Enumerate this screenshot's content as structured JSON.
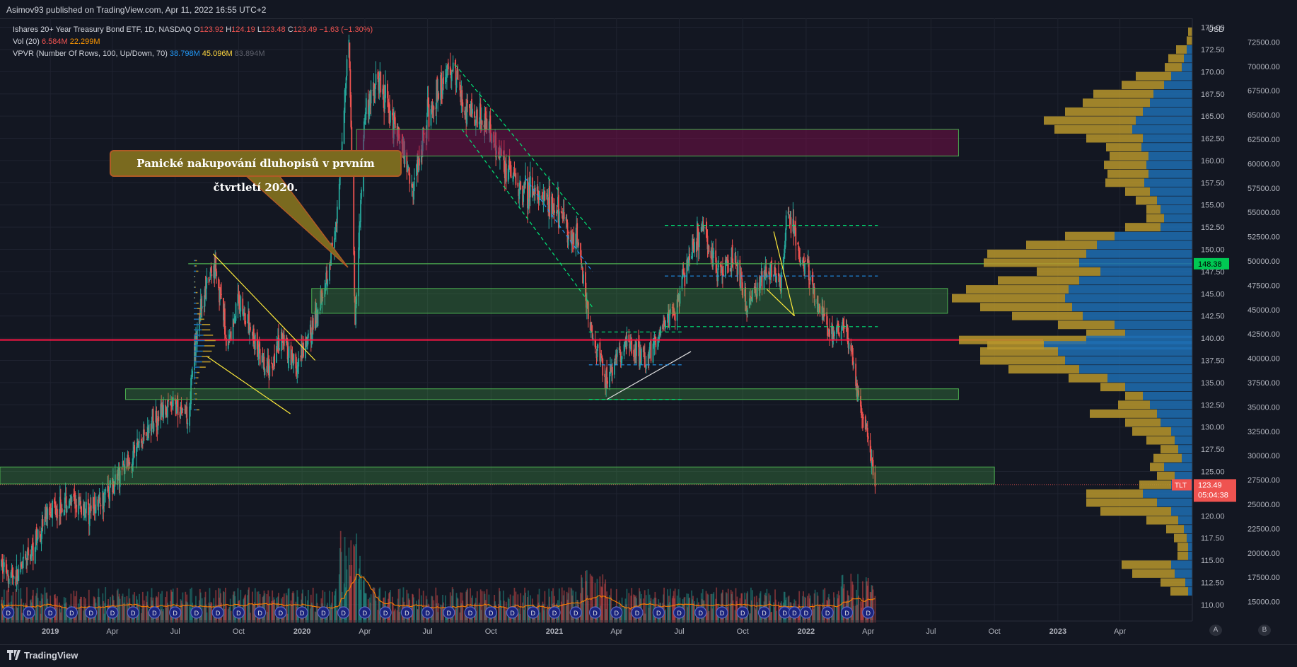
{
  "publisher": "Asimov93 published on TradingView.com, Apr 11, 2022 16:55 UTC+2",
  "legend": {
    "title": "Ishares 20+ Year Treasury Bond ETF, 1D, NASDAQ",
    "o_label": "O",
    "o": "123.92",
    "h_label": "H",
    "h": "124.19",
    "l_label": "L",
    "l": "123.48",
    "c_label": "C",
    "c": "123.49",
    "change": "−1.63 (−1.30%)",
    "vol_label": "Vol (20)",
    "vol1": "6.584M",
    "vol2": "22.299M",
    "vpvr_label": "VPVR (Number Of Rows, 100, Up/Down, 70)",
    "vpvr1": "38.798M",
    "vpvr2": "45.096M",
    "vpvr3": "83.894M"
  },
  "annotation": "Panické nakupování dluhopisů v prvním čtvrtletí 2020.",
  "colors": {
    "bg": "#131722",
    "up": "#26a69a",
    "down": "#ef5350",
    "zone_green": "#4caf50",
    "zone_red": "#880e4f",
    "vp_up": "#1e6fb3",
    "vp_down": "#b8962b",
    "vol_ma": "#f57c00",
    "red_line": "#ff1744"
  },
  "chart_data": {
    "type": "candlestick",
    "title": "Ishares 20+ Year Treasury Bond ETF, 1D, NASDAQ",
    "currency": "USD",
    "symbol": "TLT",
    "last_price": "123.49",
    "countdown": "05:04:38",
    "level_label": "148.38",
    "ylim": [
      108,
      176
    ],
    "x_range": [
      "2018-10-20",
      "2023-07-15"
    ],
    "price_ticks": [
      "175.00",
      "172.50",
      "170.00",
      "167.50",
      "165.00",
      "162.50",
      "160.00",
      "157.50",
      "155.00",
      "152.50",
      "150.00",
      "147.50",
      "145.00",
      "142.50",
      "140.00",
      "137.50",
      "135.00",
      "132.50",
      "130.00",
      "127.50",
      "125.00",
      "122.50",
      "120.00",
      "117.50",
      "115.00",
      "112.50",
      "110.00"
    ],
    "volume_ticks": [
      "72500.00",
      "70000.00",
      "67500.00",
      "65000.00",
      "62500.00",
      "60000.00",
      "57500.00",
      "55000.00",
      "52500.00",
      "50000.00",
      "47500.00",
      "45000.00",
      "42500.00",
      "40000.00",
      "37500.00",
      "35000.00",
      "32500.00",
      "30000.00",
      "27500.00",
      "25000.00",
      "22500.00",
      "20000.00",
      "17500.00",
      "15000.00"
    ],
    "x_ticks": [
      {
        "label": "2019",
        "date": "2019-01-01"
      },
      {
        "label": "Apr",
        "date": "2019-04-01"
      },
      {
        "label": "Jul",
        "date": "2019-07-01"
      },
      {
        "label": "Oct",
        "date": "2019-10-01"
      },
      {
        "label": "2020",
        "date": "2020-01-01"
      },
      {
        "label": "Apr",
        "date": "2020-04-01"
      },
      {
        "label": "Jul",
        "date": "2020-07-01"
      },
      {
        "label": "Oct",
        "date": "2020-10-01"
      },
      {
        "label": "2021",
        "date": "2021-01-01"
      },
      {
        "label": "Apr",
        "date": "2021-04-01"
      },
      {
        "label": "Jul",
        "date": "2021-07-01"
      },
      {
        "label": "Oct",
        "date": "2021-10-01"
      },
      {
        "label": "2022",
        "date": "2022-01-01"
      },
      {
        "label": "Apr",
        "date": "2022-04-01"
      },
      {
        "label": "Jul",
        "date": "2022-07-01"
      },
      {
        "label": "Oct",
        "date": "2022-10-01"
      },
      {
        "label": "2023",
        "date": "2023-01-01"
      },
      {
        "label": "Apr",
        "date": "2023-04-01"
      }
    ],
    "price_path": [
      [
        "2018-10-20",
        114.5
      ],
      [
        "2018-11-15",
        113.0
      ],
      [
        "2018-12-10",
        117.0
      ],
      [
        "2019-01-01",
        121.0
      ],
      [
        "2019-02-01",
        121.5
      ],
      [
        "2019-03-01",
        120.5
      ],
      [
        "2019-04-01",
        123.5
      ],
      [
        "2019-05-01",
        127.0
      ],
      [
        "2019-06-01",
        131.0
      ],
      [
        "2019-07-01",
        132.5
      ],
      [
        "2019-07-20",
        131.5
      ],
      [
        "2019-08-05",
        143.0
      ],
      [
        "2019-08-28",
        148.5
      ],
      [
        "2019-09-15",
        139.0
      ],
      [
        "2019-10-01",
        144.5
      ],
      [
        "2019-11-10",
        136.0
      ],
      [
        "2019-12-05",
        140.0
      ],
      [
        "2019-12-25",
        136.5
      ],
      [
        "2020-01-20",
        142.0
      ],
      [
        "2020-02-20",
        152.0
      ],
      [
        "2020-03-09",
        175.0
      ],
      [
        "2020-03-18",
        142.0
      ],
      [
        "2020-04-01",
        165.5
      ],
      [
        "2020-04-20",
        169.0
      ],
      [
        "2020-05-20",
        163.0
      ],
      [
        "2020-06-10",
        157.0
      ],
      [
        "2020-07-01",
        165.0
      ],
      [
        "2020-08-05",
        171.0
      ],
      [
        "2020-08-25",
        165.5
      ],
      [
        "2020-09-20",
        165.0
      ],
      [
        "2020-10-20",
        160.0
      ],
      [
        "2020-11-10",
        157.0
      ],
      [
        "2020-12-10",
        156.0
      ],
      [
        "2021-01-05",
        154.0
      ],
      [
        "2021-02-01",
        151.5
      ],
      [
        "2021-02-25",
        140.0
      ],
      [
        "2021-03-18",
        135.5
      ],
      [
        "2021-04-15",
        139.5
      ],
      [
        "2021-05-10",
        137.5
      ],
      [
        "2021-06-01",
        140.5
      ],
      [
        "2021-06-25",
        143.0
      ],
      [
        "2021-07-15",
        149.0
      ],
      [
        "2021-08-04",
        152.5
      ],
      [
        "2021-08-25",
        147.5
      ],
      [
        "2021-09-20",
        149.0
      ],
      [
        "2021-10-05",
        144.0
      ],
      [
        "2021-10-25",
        146.0
      ],
      [
        "2021-11-10",
        148.0
      ],
      [
        "2021-11-25",
        146.0
      ],
      [
        "2021-12-05",
        154.0
      ],
      [
        "2021-12-20",
        150.0
      ],
      [
        "2022-01-05",
        147.5
      ],
      [
        "2022-01-20",
        143.5
      ],
      [
        "2022-02-10",
        140.0
      ],
      [
        "2022-02-28",
        141.0
      ],
      [
        "2022-03-10",
        137.0
      ],
      [
        "2022-03-20",
        131.0
      ],
      [
        "2022-03-30",
        130.0
      ],
      [
        "2022-04-11",
        123.49
      ]
    ],
    "zones": [
      {
        "type": "resistance",
        "from": "2020-03-20",
        "to": "2022-08-10",
        "low": 160.5,
        "high": 163.5
      },
      {
        "type": "support",
        "from": "2020-01-15",
        "to": "2022-07-25",
        "low": 142.8,
        "high": 145.6
      },
      {
        "type": "support",
        "from": "2019-04-20",
        "to": "2022-08-10",
        "low": 133.1,
        "high": 134.3
      },
      {
        "type": "support",
        "from": "2018-10-20",
        "to": "2022-10-01",
        "low": 123.6,
        "high": 125.5
      }
    ],
    "lines": [
      {
        "name": "red-horizontal",
        "price": 139.8
      },
      {
        "name": "green-horizontal",
        "from": "2019-07-20",
        "to": "2023-07-15",
        "price": 148.38
      }
    ],
    "volume_profile": [
      [
        174.5,
        0,
        6
      ],
      [
        173.5,
        0,
        8
      ],
      [
        172.5,
        8,
        15
      ],
      [
        171.5,
        12,
        22
      ],
      [
        170.5,
        15,
        24
      ],
      [
        169.5,
        30,
        50
      ],
      [
        168.5,
        40,
        60
      ],
      [
        167.5,
        55,
        85
      ],
      [
        166.5,
        60,
        95
      ],
      [
        165.5,
        70,
        110
      ],
      [
        164.5,
        80,
        130
      ],
      [
        163.5,
        85,
        110
      ],
      [
        162.5,
        70,
        80
      ],
      [
        161.5,
        72,
        50
      ],
      [
        160.5,
        62,
        55
      ],
      [
        159.5,
        65,
        60
      ],
      [
        158.5,
        62,
        58
      ],
      [
        157.5,
        68,
        55
      ],
      [
        156.5,
        60,
        35
      ],
      [
        155.5,
        50,
        30
      ],
      [
        154.5,
        45,
        20
      ],
      [
        153.5,
        40,
        25
      ],
      [
        152.5,
        45,
        50
      ],
      [
        151.5,
        110,
        70
      ],
      [
        150.5,
        135,
        100
      ],
      [
        149.5,
        150,
        140
      ],
      [
        148.5,
        160,
        135
      ],
      [
        147.5,
        130,
        90
      ],
      [
        146.5,
        160,
        115
      ],
      [
        145.5,
        175,
        145
      ],
      [
        144.5,
        180,
        160
      ],
      [
        143.5,
        170,
        130
      ],
      [
        142.5,
        155,
        100
      ],
      [
        141.5,
        110,
        80
      ],
      [
        140.5,
        95,
        55
      ],
      [
        139.8,
        150,
        180
      ],
      [
        139.2,
        210,
        80
      ],
      [
        138.5,
        190,
        110
      ],
      [
        137.5,
        180,
        120
      ],
      [
        136.5,
        160,
        100
      ],
      [
        135.5,
        120,
        55
      ],
      [
        134.5,
        95,
        35
      ],
      [
        133.5,
        70,
        25
      ],
      [
        132.5,
        60,
        45
      ],
      [
        131.5,
        50,
        95
      ],
      [
        130.5,
        45,
        50
      ],
      [
        129.5,
        30,
        55
      ],
      [
        128.5,
        25,
        40
      ],
      [
        127.5,
        20,
        25
      ],
      [
        126.5,
        15,
        40
      ],
      [
        125.5,
        40,
        20
      ],
      [
        124.5,
        25,
        25
      ],
      [
        123.5,
        30,
        45
      ],
      [
        122.5,
        70,
        80
      ],
      [
        121.5,
        50,
        100
      ],
      [
        120.5,
        30,
        100
      ],
      [
        119.5,
        20,
        45
      ],
      [
        118.5,
        12,
        25
      ],
      [
        117.5,
        8,
        18
      ],
      [
        116.5,
        6,
        15
      ],
      [
        115.5,
        6,
        15
      ],
      [
        114.5,
        30,
        70
      ],
      [
        113.5,
        25,
        60
      ],
      [
        112.5,
        10,
        35
      ],
      [
        111.5,
        6,
        25
      ]
    ],
    "dividend_dates": [
      "2018-11-01",
      "2018-12-01",
      "2019-01-01",
      "2019-02-01",
      "2019-03-01",
      "2019-04-01",
      "2019-05-01",
      "2019-06-01",
      "2019-07-01",
      "2019-08-01",
      "2019-09-01",
      "2019-10-01",
      "2019-11-01",
      "2019-12-01",
      "2020-01-01",
      "2020-02-01",
      "2020-03-01",
      "2020-04-01",
      "2020-05-01",
      "2020-06-01",
      "2020-07-01",
      "2020-08-01",
      "2020-09-01",
      "2020-10-01",
      "2020-11-01",
      "2020-12-01",
      "2021-01-01",
      "2021-02-01",
      "2021-03-01",
      "2021-04-01",
      "2021-05-01",
      "2021-06-01",
      "2021-07-01",
      "2021-08-01",
      "2021-09-01",
      "2021-10-01",
      "2021-11-01",
      "2021-12-01",
      "2021-12-15",
      "2022-01-01",
      "2022-02-01",
      "2022-03-01",
      "2022-04-01"
    ],
    "dividend_label": "D",
    "axis_buttons": [
      "A",
      "B"
    ]
  }
}
